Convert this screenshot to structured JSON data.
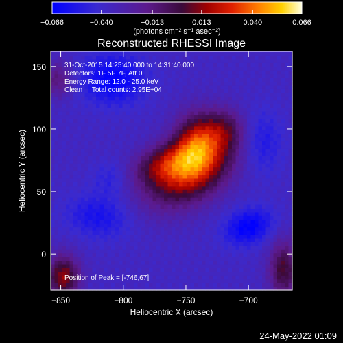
{
  "chart_data": {
    "type": "heatmap",
    "title": "Reconstructed RHESSI Image",
    "xlabel": "Heliocentric X (arcsec)",
    "ylabel": "Heliocentric Y (arcsec)",
    "xlim": [
      -858,
      -665
    ],
    "ylim": [
      -29,
      162
    ],
    "xticks": [
      -850,
      -800,
      -750,
      -700
    ],
    "yticks": [
      0,
      50,
      100,
      150
    ],
    "xtick_labels": [
      "−850",
      "−800",
      "−750",
      "−700"
    ],
    "ytick_labels": [
      "0",
      "50",
      "100",
      "150"
    ],
    "colorbar": {
      "range": [
        -0.066,
        0.066
      ],
      "ticks": [
        -0.066,
        -0.04,
        -0.013,
        0.013,
        0.04,
        0.066
      ],
      "tick_labels": [
        "−0.066",
        "−0.040",
        "−0.013",
        "0.013",
        "0.040",
        "0.066"
      ],
      "unit_label": "(photons cm⁻² s⁻¹ asec⁻²)"
    },
    "annotations": [
      "31-Oct-2015 14:25:40.000 to 14:31:40.000",
      "Detectors: 1F 5F 7F, Att 0",
      "Energy Range: 12.0 - 25.0 keV",
      "Clean     Total counts: 2.95E+04"
    ],
    "peak_label": "Position of Peak = [-746,67]",
    "peak": [
      -746,
      67
    ],
    "peak_value": 0.066,
    "sources": [
      {
        "x": -746,
        "y": 67,
        "sx": 26,
        "sy": 16,
        "rot": 32,
        "amp": 0.066
      },
      {
        "x": -768,
        "y": 73,
        "sx": 18,
        "sy": 10,
        "rot": 20,
        "amp": 0.03
      },
      {
        "x": -742,
        "y": 92,
        "sx": 12,
        "sy": 16,
        "rot": 0,
        "amp": 0.04
      },
      {
        "x": -720,
        "y": 100,
        "sx": 12,
        "sy": 12,
        "rot": 0,
        "amp": 0.03
      },
      {
        "x": -848,
        "y": -18,
        "sx": 9,
        "sy": 12,
        "rot": 0,
        "amp": 0.05
      },
      {
        "x": -672,
        "y": -12,
        "sx": 8,
        "sy": 16,
        "rot": 0,
        "amp": 0.04
      },
      {
        "x": -852,
        "y": 140,
        "sx": 8,
        "sy": 10,
        "rot": 0,
        "amp": 0.025
      },
      {
        "x": -808,
        "y": 140,
        "sx": 18,
        "sy": 14,
        "rot": 0,
        "amp": -0.03
      },
      {
        "x": -700,
        "y": 22,
        "sx": 14,
        "sy": 10,
        "rot": 20,
        "amp": -0.03
      },
      {
        "x": -820,
        "y": 30,
        "sx": 18,
        "sy": 12,
        "rot": -10,
        "amp": -0.02
      },
      {
        "x": -690,
        "y": 90,
        "sx": 12,
        "sy": 18,
        "rot": 0,
        "amp": -0.018
      },
      {
        "x": -810,
        "y": 60,
        "sx": 10,
        "sy": 10,
        "rot": 0,
        "amp": -0.012
      }
    ]
  },
  "footer": {
    "date": "24-May-2022 01:09"
  }
}
